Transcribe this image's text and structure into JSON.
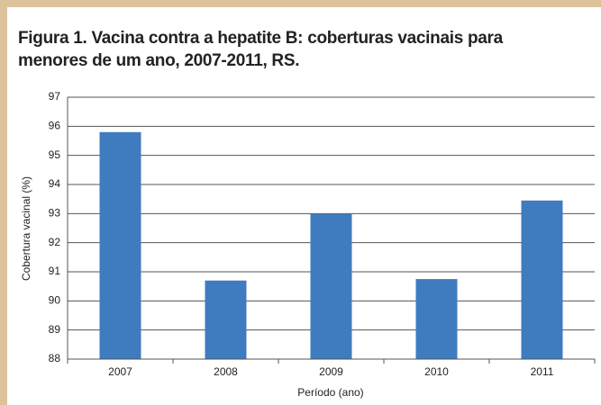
{
  "chart_data": {
    "type": "bar",
    "title": "Figura 1. Vacina contra a hepatite B: coberturas vacinais para menores de um ano, 2007-2011, RS.",
    "categories": [
      "2007",
      "2008",
      "2009",
      "2010",
      "2011"
    ],
    "values": [
      95.8,
      90.7,
      93.0,
      90.75,
      93.45
    ],
    "color": "#3f7bbf",
    "ylim": [
      88,
      97
    ],
    "yticks": [
      88,
      89,
      90,
      91,
      92,
      93,
      94,
      95,
      96,
      97
    ],
    "grid": true,
    "xlabel": "Período (ano)",
    "ylabel": "Cobertura vacinal (%)"
  }
}
